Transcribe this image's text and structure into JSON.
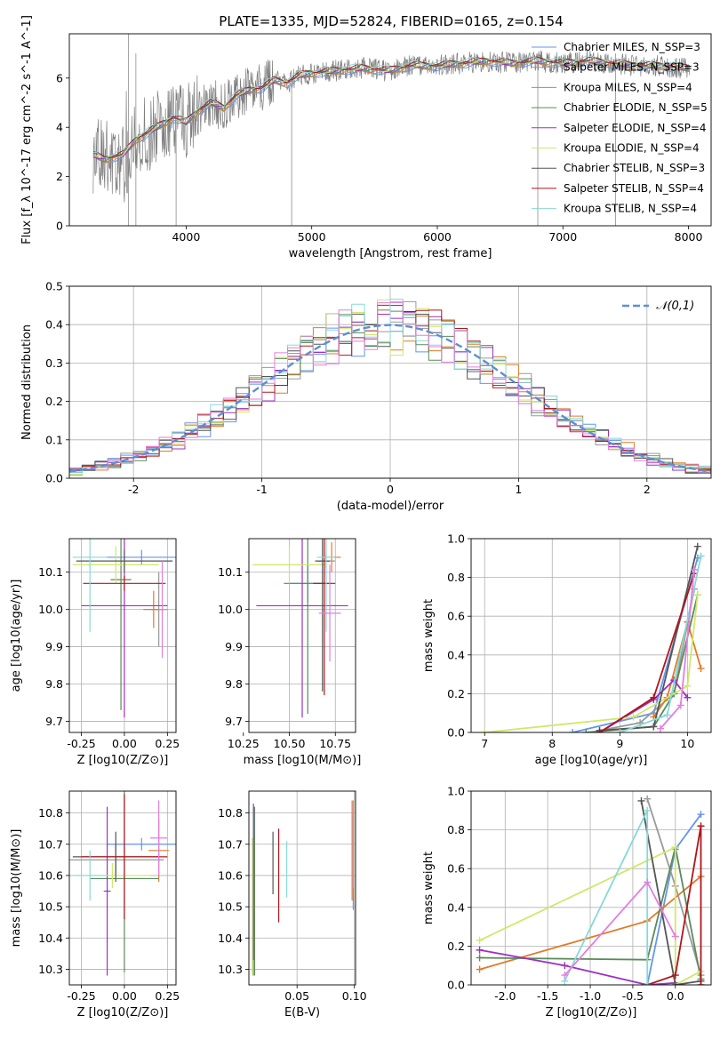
{
  "figure_title": "PLATE=1335, MJD=52824, FIBERID=0165, z=0.154",
  "colors": [
    "#6495ed",
    "#9a9a9a",
    "#e07b28",
    "#5a8a5a",
    "#9b30c0",
    "#cfe86a",
    "#555555",
    "#b0161b",
    "#88d8d8",
    "#e37ee0",
    "#ffffff"
  ],
  "chart_data": [
    {
      "id": "spectrum",
      "type": "line",
      "title": "PLATE=1335, MJD=52824, FIBERID=0165, z=0.154",
      "xlabel": "wavelength [Angstrom, rest frame]",
      "ylabel": "Flux [f_λ 10^-17 erg cm^-2 s^-1 A^-1]",
      "xlim": [
        3070,
        8180
      ],
      "ylim": [
        0,
        7.8
      ],
      "xticks": [
        4000,
        5000,
        6000,
        7000,
        8000
      ],
      "yticks": [
        0,
        2,
        4,
        6
      ],
      "legend_position": "upper-right",
      "series": [
        {
          "name": "Chabrier MILES, N_SSP=3",
          "color": "#6495ed"
        },
        {
          "name": "Salpeter MILES, N_SSP=3",
          "color": "#9a9a9a"
        },
        {
          "name": "Kroupa MILES, N_SSP=4",
          "color": "#e07b28"
        },
        {
          "name": "Chabrier ELODIE, N_SSP=5",
          "color": "#5a8a5a"
        },
        {
          "name": "Salpeter ELODIE, N_SSP=4",
          "color": "#9b30c0"
        },
        {
          "name": "Kroupa ELODIE, N_SSP=4",
          "color": "#cfe86a"
        },
        {
          "name": "Chabrier STELIB, N_SSP=3",
          "color": "#555555"
        },
        {
          "name": "Salpeter STELIB, N_SSP=4",
          "color": "#b0161b"
        },
        {
          "name": "Kroupa STELIB, N_SSP=4",
          "color": "#88d8d8"
        }
      ],
      "data_color": "#7f7f7f",
      "continuum": {
        "x": [
          3250,
          3350,
          3500,
          3600,
          3700,
          3800,
          3900,
          4000,
          4100,
          4200,
          4300,
          4400,
          4500,
          4600,
          4700,
          4800,
          4900,
          5000,
          5200,
          5400,
          5600,
          5800,
          6000,
          6200,
          6400,
          6600,
          6800,
          7000,
          7200,
          7400,
          7600,
          7800,
          8000
        ],
        "y": [
          2.9,
          2.7,
          2.9,
          3.5,
          3.8,
          4.1,
          4.4,
          4.2,
          4.7,
          5.0,
          4.8,
          5.3,
          5.5,
          5.6,
          5.9,
          5.8,
          6.1,
          6.2,
          6.3,
          6.4,
          6.3,
          6.5,
          6.5,
          6.6,
          6.7,
          6.6,
          6.7,
          6.6,
          6.7,
          6.6,
          6.5,
          6.5,
          6.4
        ]
      }
    },
    {
      "id": "residuals",
      "type": "bar",
      "xlabel": "(data-model)/error",
      "ylabel": "Normed distribution",
      "xlim": [
        -2.5,
        2.5
      ],
      "ylim": [
        0,
        0.5
      ],
      "xticks": [
        -2,
        -1,
        0,
        1,
        2
      ],
      "yticks": [
        0.0,
        0.1,
        0.2,
        0.3,
        0.4,
        0.5
      ],
      "grid": true,
      "legend_position": "upper-right",
      "reference": {
        "name": "𝒩(0,1)",
        "color": "#5b8fd6",
        "style": "dashed",
        "mean": 0,
        "sigma": 1
      },
      "bin_width": 0.1,
      "series_colors": [
        "#6495ed",
        "#9a9a9a",
        "#e07b28",
        "#5a8a5a",
        "#9b30c0",
        "#cfe86a",
        "#555555",
        "#b0161b",
        "#88d8d8",
        "#e37ee0"
      ]
    },
    {
      "id": "age-vs-Z",
      "type": "scatter",
      "xlabel": "Z [log10(Z/Z⊙)]",
      "ylabel": "age  [log10(age/yr)]",
      "xlim": [
        -0.32,
        0.3
      ],
      "ylim": [
        9.67,
        10.19
      ],
      "xticks": [
        -0.25,
        0.0,
        0.25
      ],
      "yticks": [
        9.7,
        9.8,
        9.9,
        10.0,
        10.1
      ],
      "grid": true,
      "points": [
        {
          "color": "#6495ed",
          "x": 0.1,
          "y": 10.14,
          "xerr": 0.2,
          "yerr": 0.02
        },
        {
          "color": "#9a9a9a",
          "x": 0.2,
          "y": 10.0,
          "xerr": 0.05,
          "yerr": 0.1
        },
        {
          "color": "#e07b28",
          "x": 0.17,
          "y": 10.0,
          "xerr": 0.06,
          "yerr": 0.05
        },
        {
          "color": "#5a8a5a",
          "x": -0.02,
          "y": 10.08,
          "xerr": 0.06,
          "yerr": 0.35
        },
        {
          "color": "#9b30c0",
          "x": 0.0,
          "y": 10.01,
          "xerr": 0.25,
          "yerr": 0.3
        },
        {
          "color": "#cfe86a",
          "x": -0.05,
          "y": 10.12,
          "xerr": 0.25,
          "yerr": 0.05
        },
        {
          "color": "#555555",
          "x": 0.0,
          "y": 10.13,
          "xerr": 0.28,
          "yerr": 0.03
        },
        {
          "color": "#b0161b",
          "x": 0.0,
          "y": 10.07,
          "xerr": 0.24,
          "yerr": 0.02
        },
        {
          "color": "#88d8d8",
          "x": -0.2,
          "y": 10.14,
          "xerr": 0.1,
          "yerr": 0.2
        },
        {
          "color": "#e37ee0",
          "x": 0.22,
          "y": 10.0,
          "xerr": 0.02,
          "yerr": 0.13
        }
      ]
    },
    {
      "id": "age-vs-mass",
      "type": "scatter",
      "xlabel": "mass [log10(M/M⊙)]",
      "ylabel": "",
      "xlim": [
        10.28,
        10.86
      ],
      "ylim": [
        9.67,
        10.19
      ],
      "xticks": [
        10.25,
        10.5,
        10.75
      ],
      "yticks": [
        9.7,
        9.8,
        9.9,
        10.0,
        10.1
      ],
      "grid": true,
      "points": [
        {
          "color": "#6495ed",
          "x": 10.6,
          "y": 10.07,
          "xerr": 0.1,
          "yerr": 0.05
        },
        {
          "color": "#9a9a9a",
          "x": 10.7,
          "y": 10.13,
          "xerr": 0.05,
          "yerr": 0.02
        },
        {
          "color": "#e07b28",
          "x": 10.73,
          "y": 10.14,
          "xerr": 0.05,
          "yerr": 0.04
        },
        {
          "color": "#5a8a5a",
          "x": 10.6,
          "y": 10.07,
          "xerr": 0.13,
          "yerr": 0.35
        },
        {
          "color": "#9b30c0",
          "x": 10.57,
          "y": 10.01,
          "xerr": 0.25,
          "yerr": 0.3
        },
        {
          "color": "#cfe86a",
          "x": 10.5,
          "y": 10.12,
          "xerr": 0.2,
          "yerr": 0.05
        },
        {
          "color": "#555555",
          "x": 10.68,
          "y": 10.13,
          "xerr": 0.04,
          "yerr": 0.35
        },
        {
          "color": "#b0161b",
          "x": 10.69,
          "y": 10.07,
          "xerr": 0.06,
          "yerr": 0.3
        },
        {
          "color": "#88d8d8",
          "x": 10.7,
          "y": 10.14,
          "xerr": 0.05,
          "yerr": 0.2
        },
        {
          "color": "#e37ee0",
          "x": 10.72,
          "y": 9.99,
          "xerr": 0.06,
          "yerr": 0.13
        }
      ]
    },
    {
      "id": "weight-vs-age",
      "type": "line",
      "xlabel": "age  [log10(age/yr)]",
      "ylabel": "mass weight",
      "xlim": [
        6.8,
        10.35
      ],
      "ylim": [
        0,
        1.0
      ],
      "xticks": [
        7,
        8,
        9,
        10
      ],
      "yticks": [
        0.0,
        0.2,
        0.4,
        0.6,
        0.8,
        1.0
      ],
      "grid": true,
      "series": [
        {
          "color": "#6495ed",
          "x": [
            8.3,
            9.5,
            10.15
          ],
          "y": [
            0.0,
            0.1,
            0.9
          ]
        },
        {
          "color": "#9a9a9a",
          "x": [
            8.7,
            9.3,
            9.8,
            10.1
          ],
          "y": [
            0.01,
            0.05,
            0.2,
            0.74
          ]
        },
        {
          "color": "#e07b28",
          "x": [
            9.5,
            9.7,
            10.0,
            10.2
          ],
          "y": [
            0.08,
            0.18,
            0.57,
            0.33
          ]
        },
        {
          "color": "#5a8a5a",
          "x": [
            8.5,
            9.5,
            9.8,
            10.15
          ],
          "y": [
            0.0,
            0.03,
            0.2,
            0.71
          ]
        },
        {
          "color": "#9b30c0",
          "x": [
            8.7,
            9.5,
            9.8,
            10.0
          ],
          "y": [
            0.0,
            0.17,
            0.27,
            0.18
          ]
        },
        {
          "color": "#cfe86a",
          "x": [
            7.0,
            9.2,
            10.0,
            10.15
          ],
          "y": [
            0.0,
            0.08,
            0.24,
            0.71
          ]
        },
        {
          "color": "#555555",
          "x": [
            8.7,
            9.5,
            10.15
          ],
          "y": [
            0.01,
            0.03,
            0.96
          ]
        },
        {
          "color": "#b0161b",
          "x": [
            8.7,
            9.5,
            10.1
          ],
          "y": [
            0.0,
            0.18,
            0.82
          ]
        },
        {
          "color": "#88d8d8",
          "x": [
            9.0,
            9.7,
            10.2
          ],
          "y": [
            0.0,
            0.09,
            0.91
          ]
        },
        {
          "color": "#e37ee0",
          "x": [
            9.6,
            9.9,
            10.1
          ],
          "y": [
            0.02,
            0.14,
            0.84
          ]
        }
      ]
    },
    {
      "id": "mass-vs-Z",
      "type": "scatter",
      "xlabel": "Z [log10(Z/Z⊙)]",
      "ylabel": "mass [log10(M/M⊙)]",
      "xlim": [
        -0.32,
        0.3
      ],
      "ylim": [
        10.25,
        10.87
      ],
      "xticks": [
        -0.25,
        0.0,
        0.25
      ],
      "yticks": [
        10.3,
        10.4,
        10.5,
        10.6,
        10.7,
        10.8
      ],
      "grid": true,
      "points": [
        {
          "color": "#6495ed",
          "x": 0.1,
          "y": 10.7,
          "xerr": 0.2,
          "yerr": 0.02
        },
        {
          "color": "#9a9a9a",
          "x": -0.05,
          "y": 10.65,
          "xerr": 0.28,
          "yerr": 0.05
        },
        {
          "color": "#e07b28",
          "x": 0.2,
          "y": 10.68,
          "xerr": 0.06,
          "yerr": 0.1
        },
        {
          "color": "#5a8a5a",
          "x": 0.0,
          "y": 10.59,
          "xerr": 0.2,
          "yerr": 0.3
        },
        {
          "color": "#9b30c0",
          "x": -0.1,
          "y": 10.55,
          "xerr": 0.02,
          "yerr": 0.27
        },
        {
          "color": "#cfe86a",
          "x": -0.07,
          "y": 10.6,
          "xerr": 0.22,
          "yerr": 0.04
        },
        {
          "color": "#555555",
          "x": -0.05,
          "y": 10.66,
          "xerr": 0.25,
          "yerr": 0.08
        },
        {
          "color": "#b0161b",
          "x": 0.0,
          "y": 10.66,
          "xerr": 0.25,
          "yerr": 0.2
        },
        {
          "color": "#88d8d8",
          "x": -0.2,
          "y": 10.6,
          "xerr": 0.1,
          "yerr": 0.08
        },
        {
          "color": "#e37ee0",
          "x": 0.2,
          "y": 10.72,
          "xerr": 0.05,
          "yerr": 0.12
        }
      ]
    },
    {
      "id": "mass-vs-ebv",
      "type": "scatter",
      "xlabel": "E(B-V)",
      "ylabel": "",
      "xlim": [
        0.008,
        0.101
      ],
      "ylim": [
        10.25,
        10.87
      ],
      "xticks": [
        0.05,
        0.1
      ],
      "yticks": [
        10.3,
        10.4,
        10.5,
        10.6,
        10.7,
        10.8
      ],
      "grid": true,
      "points": [
        {
          "color": "#6495ed",
          "x": 0.099,
          "y": 10.64,
          "xerr": 0.0,
          "yerr": 0.15
        },
        {
          "color": "#9a9a9a",
          "x": 0.012,
          "y": 10.55,
          "xerr": 0.0,
          "yerr": 0.27
        },
        {
          "color": "#e07b28",
          "x": 0.098,
          "y": 10.68,
          "xerr": 0.0,
          "yerr": 0.16
        },
        {
          "color": "#5a8a5a",
          "x": 0.013,
          "y": 10.55,
          "xerr": 0.0,
          "yerr": 0.27
        },
        {
          "color": "#9b30c0",
          "x": 0.012,
          "y": 10.58,
          "xerr": 0.0,
          "yerr": 0.25
        },
        {
          "color": "#cfe86a",
          "x": 0.011,
          "y": 10.5,
          "xerr": 0.0,
          "yerr": 0.22
        },
        {
          "color": "#555555",
          "x": 0.029,
          "y": 10.64,
          "xerr": 0.0,
          "yerr": 0.1
        },
        {
          "color": "#b0161b",
          "x": 0.034,
          "y": 10.6,
          "xerr": 0.0,
          "yerr": 0.15
        },
        {
          "color": "#88d8d8",
          "x": 0.041,
          "y": 10.62,
          "xerr": 0.0,
          "yerr": 0.09
        },
        {
          "color": "#e37ee0",
          "x": 0.099,
          "y": 10.7,
          "xerr": 0.0,
          "yerr": 0.14
        }
      ]
    },
    {
      "id": "weight-vs-Z",
      "type": "line",
      "xlabel": "Z [log10(Z/Z⊙)]",
      "ylabel": "mass weight",
      "xlim": [
        -2.4,
        0.42
      ],
      "ylim": [
        0,
        1.0
      ],
      "xticks": [
        -2.0,
        -1.5,
        -1.0,
        -0.5,
        0.0
      ],
      "yticks": [
        0.0,
        0.2,
        0.4,
        0.6,
        0.8,
        1.0
      ],
      "grid": true,
      "series": [
        {
          "color": "#6495ed",
          "x": [
            -0.33,
            0.0,
            0.3
          ],
          "y": [
            0.0,
            0.7,
            0.88
          ]
        },
        {
          "color": "#9a9a9a",
          "x": [
            -0.33,
            0.0,
            0.3
          ],
          "y": [
            0.96,
            0.51,
            0.05
          ]
        },
        {
          "color": "#e07b28",
          "x": [
            -2.3,
            -0.33,
            0.3
          ],
          "y": [
            0.08,
            0.33,
            0.56
          ]
        },
        {
          "color": "#5a8a5a",
          "x": [
            -2.3,
            -0.33,
            0.0,
            0.3
          ],
          "y": [
            0.14,
            0.13,
            0.71,
            0.03
          ]
        },
        {
          "color": "#9b30c0",
          "x": [
            -2.3,
            -1.3,
            -0.33,
            0.0
          ],
          "y": [
            0.18,
            0.1,
            0.0,
            0.01
          ]
        },
        {
          "color": "#cfe86a",
          "x": [
            -2.3,
            0.0,
            0.0,
            0.3
          ],
          "y": [
            0.23,
            0.71,
            0.0,
            0.07
          ]
        },
        {
          "color": "#555555",
          "x": [
            -0.4,
            0.0,
            0.3
          ],
          "y": [
            0.95,
            0.0,
            0.02
          ]
        },
        {
          "color": "#b0161b",
          "x": [
            -0.33,
            0.0,
            0.3,
            0.3
          ],
          "y": [
            0.0,
            0.05,
            0.82,
            0.0
          ]
        },
        {
          "color": "#88d8d8",
          "x": [
            -1.3,
            -0.33,
            -0.33
          ],
          "y": [
            0.02,
            0.9,
            0.0
          ]
        },
        {
          "color": "#e37ee0",
          "x": [
            -1.3,
            -0.33,
            0.0
          ],
          "y": [
            0.05,
            0.53,
            0.25
          ]
        }
      ]
    }
  ]
}
